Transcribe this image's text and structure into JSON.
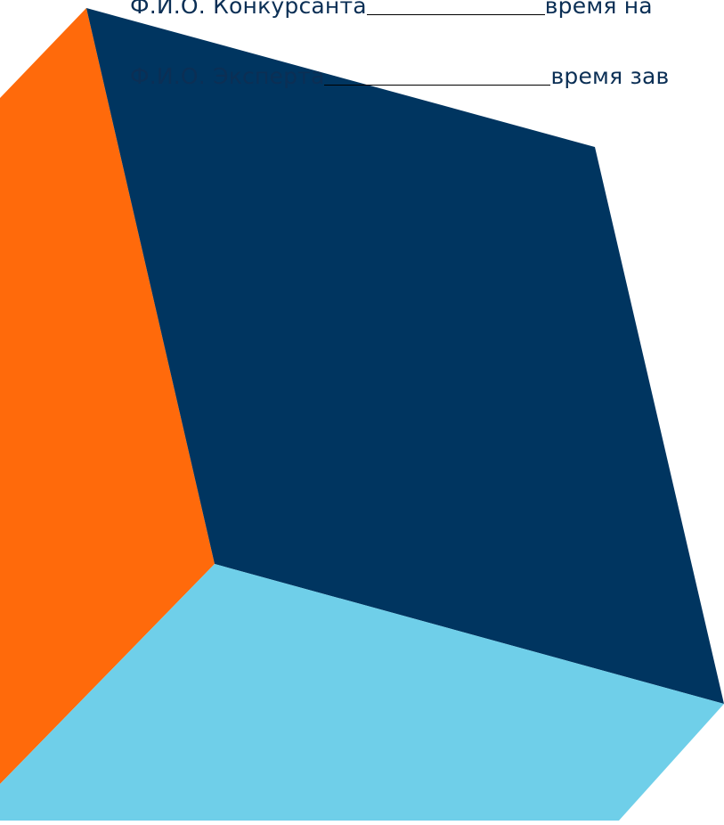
{
  "form": {
    "contestant_label": "Ф.И.О. Конкурсанта",
    "start_time_label": "время на",
    "expert_label": "Ф.И.О. Эксперта",
    "end_time_label": "время зав"
  },
  "colors": {
    "text": "#0b2f55",
    "cube_top": "#003560",
    "cube_left": "#ff6a0b",
    "cube_bottom": "#6fcfe9",
    "background": "#ffffff"
  }
}
